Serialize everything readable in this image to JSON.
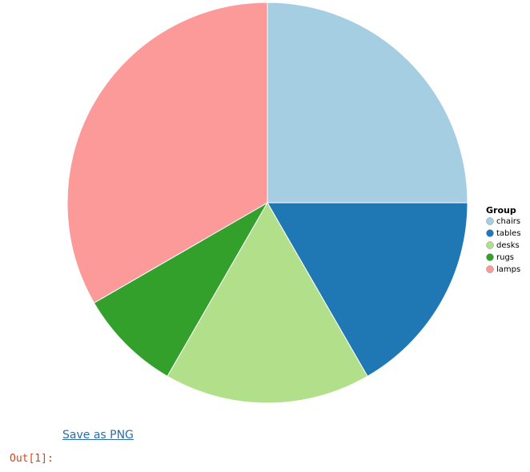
{
  "chart_data": {
    "type": "pie",
    "legend_title": "Group",
    "categories": [
      "chairs",
      "tables",
      "desks",
      "rugs",
      "lamps"
    ],
    "values": [
      3,
      2,
      2,
      1,
      4
    ],
    "colors": [
      "#a6cee3",
      "#1f78b4",
      "#b2df8a",
      "#33a02c",
      "#fb9a99"
    ],
    "legend_position": "right"
  },
  "link": "Save as PNG",
  "prompt": "Out[1]:"
}
